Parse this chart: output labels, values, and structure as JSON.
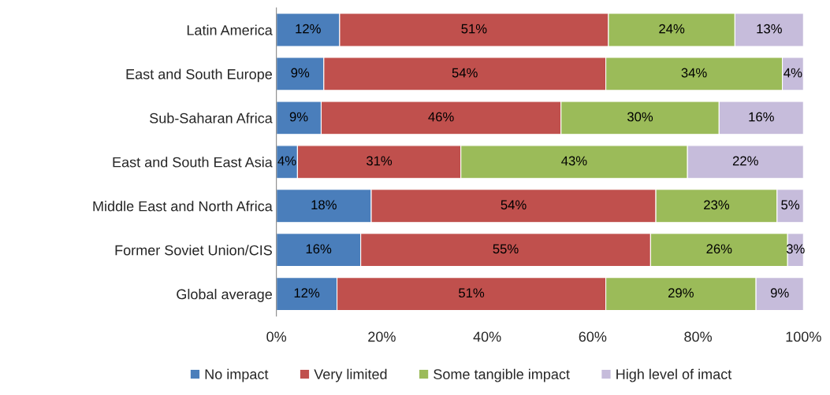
{
  "chart_data": {
    "type": "bar",
    "orientation": "horizontal",
    "stacked": true,
    "categories": [
      "Latin America",
      "East and South Europe",
      "Sub-Saharan Africa",
      "East and South East Asia",
      "Middle East and North Africa",
      "Former Soviet Union/CIS",
      "Global average"
    ],
    "series": [
      {
        "name": "No impact",
        "color": "#4a7ebb",
        "values": [
          12,
          9,
          8.5,
          4,
          18,
          16,
          11.5
        ],
        "value_labels": [
          "12%",
          "9%",
          "9%",
          "4%",
          "18%",
          "16%",
          "12%"
        ]
      },
      {
        "name": "Very limited",
        "color": "#c0504d",
        "values": [
          51,
          53.5,
          45.5,
          31,
          54,
          55,
          51
        ],
        "value_labels": [
          "51%",
          "54%",
          "46%",
          "31%",
          "54%",
          "55%",
          "51%"
        ]
      },
      {
        "name": "Some tangible impact",
        "color": "#9bbb59",
        "values": [
          24,
          33.5,
          30,
          43,
          23,
          26,
          28.5
        ],
        "value_labels": [
          "24%",
          "34%",
          "30%",
          "43%",
          "23%",
          "26%",
          "29%"
        ]
      },
      {
        "name": "High level of imact",
        "color": "#c6bcdb",
        "values": [
          13,
          4,
          16,
          22,
          5,
          3,
          9
        ],
        "value_labels": [
          "13%",
          "4%",
          "16%",
          "22%",
          "5%",
          "3%",
          "9%"
        ]
      }
    ],
    "xlim": [
      0,
      100
    ],
    "xticks": [
      {
        "value": 0,
        "label": "0%"
      },
      {
        "value": 20,
        "label": "20%"
      },
      {
        "value": 40,
        "label": "40%"
      },
      {
        "value": 60,
        "label": "60%"
      },
      {
        "value": 80,
        "label": "80%"
      },
      {
        "value": 100,
        "label": "100%"
      }
    ],
    "grid": false,
    "legend": "bottom"
  }
}
